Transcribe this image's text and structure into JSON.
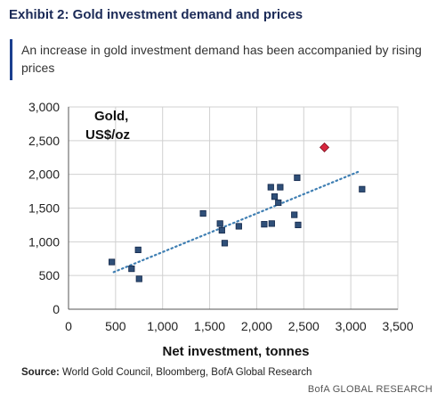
{
  "header": {
    "exhibit_title": "Exhibit 2: Gold investment demand and prices",
    "subtitle": "An increase in gold investment demand has been accompanied by rising prices"
  },
  "source": {
    "label": "Source:",
    "text": " World Gold Council, Bloomberg, BofA Global Research"
  },
  "footer": {
    "text": "BofA GLOBAL RESEARCH"
  },
  "colors": {
    "marker": "#2f4f78",
    "marker_stroke": "#14284a",
    "highlight": "#d7263d",
    "trendline": "#3f7fb3",
    "grid": "#d0d0d0",
    "axis": "#555555",
    "accent": "#1b3f8f"
  },
  "chart_data": {
    "type": "scatter",
    "title": "",
    "annotation": [
      "Gold,",
      "US$/oz"
    ],
    "xlabel": "Net investment, tonnes",
    "ylabel": "",
    "xlim": [
      0,
      3500
    ],
    "ylim": [
      0,
      3000
    ],
    "x_ticks": [
      0,
      500,
      1000,
      1500,
      2000,
      2500,
      3000,
      3500
    ],
    "y_ticks": [
      0,
      500,
      1000,
      1500,
      2000,
      2500,
      3000
    ],
    "x_tick_labels": [
      "0",
      "500",
      "1,000",
      "1,500",
      "2,000",
      "2,500",
      "3,000",
      "3,500"
    ],
    "y_tick_labels": [
      "0",
      "500",
      "1,000",
      "1,500",
      "2,000",
      "2,500",
      "3,000"
    ],
    "grid": true,
    "series": [
      {
        "marker": "square",
        "points": [
          {
            "x": 460,
            "y": 700
          },
          {
            "x": 670,
            "y": 600
          },
          {
            "x": 740,
            "y": 880
          },
          {
            "x": 750,
            "y": 450
          },
          {
            "x": 1430,
            "y": 1420
          },
          {
            "x": 1610,
            "y": 1270
          },
          {
            "x": 1630,
            "y": 1170
          },
          {
            "x": 1660,
            "y": 980
          },
          {
            "x": 1810,
            "y": 1230
          },
          {
            "x": 2080,
            "y": 1260
          },
          {
            "x": 2150,
            "y": 1810
          },
          {
            "x": 2160,
            "y": 1270
          },
          {
            "x": 2190,
            "y": 1670
          },
          {
            "x": 2230,
            "y": 1580
          },
          {
            "x": 2250,
            "y": 1810
          },
          {
            "x": 2400,
            "y": 1400
          },
          {
            "x": 2430,
            "y": 1950
          },
          {
            "x": 2440,
            "y": 1250
          },
          {
            "x": 3120,
            "y": 1780
          }
        ]
      },
      {
        "marker": "diamond",
        "points": [
          {
            "x": 2720,
            "y": 2400
          }
        ]
      }
    ],
    "trendline": {
      "style": "dotted",
      "x0": 480,
      "y0": 550,
      "x1": 3100,
      "y1": 2050
    }
  }
}
